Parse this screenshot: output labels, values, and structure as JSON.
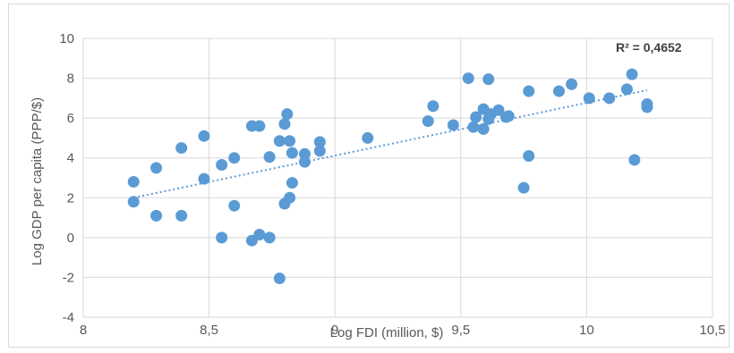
{
  "chart_data": {
    "type": "scatter",
    "xlabel": "Log FDI (million, $)",
    "ylabel": "Log GDP per capita (PPP/$)",
    "xlim": [
      8,
      10.5
    ],
    "ylim": [
      -4,
      10
    ],
    "x_ticks": [
      8,
      8.5,
      9,
      9.5,
      10,
      10.5
    ],
    "x_tick_labels": [
      "8",
      "8,5",
      "9",
      "9,5",
      "10",
      "10,5"
    ],
    "y_ticks": [
      -4,
      -2,
      0,
      2,
      4,
      6,
      8,
      10
    ],
    "y_tick_labels": [
      "-4",
      "-2",
      "0",
      "2",
      "4",
      "6",
      "8",
      "10"
    ],
    "grid": "horizontal and vertical",
    "annotation": "R² = 0,4652",
    "trendline": {
      "type": "linear",
      "style": "dotted",
      "x": [
        8.2,
        10.24
      ],
      "y": [
        2.0,
        7.4
      ]
    },
    "colors": {
      "points": "#5b9bd5",
      "trendline": "#5b9bd5",
      "grid": "#d9d9d9"
    },
    "series": [
      {
        "points": [
          [
            8.2,
            2.8
          ],
          [
            8.2,
            1.8
          ],
          [
            8.29,
            3.5
          ],
          [
            8.29,
            1.1
          ],
          [
            8.39,
            4.5
          ],
          [
            8.39,
            1.1
          ],
          [
            8.48,
            5.1
          ],
          [
            8.48,
            2.95
          ],
          [
            8.55,
            3.65
          ],
          [
            8.55,
            0.0
          ],
          [
            8.6,
            4.0
          ],
          [
            8.6,
            1.6
          ],
          [
            8.67,
            5.6
          ],
          [
            8.67,
            -0.15
          ],
          [
            8.7,
            5.6
          ],
          [
            8.7,
            0.15
          ],
          [
            8.74,
            4.05
          ],
          [
            8.74,
            0.0
          ],
          [
            8.78,
            4.85
          ],
          [
            8.78,
            -2.05
          ],
          [
            8.8,
            5.7
          ],
          [
            8.81,
            6.2
          ],
          [
            8.82,
            4.85
          ],
          [
            8.83,
            4.25
          ],
          [
            8.83,
            2.75
          ],
          [
            8.82,
            2.0
          ],
          [
            8.8,
            1.7
          ],
          [
            8.88,
            4.2
          ],
          [
            8.88,
            3.8
          ],
          [
            8.94,
            4.8
          ],
          [
            8.94,
            4.35
          ],
          [
            9.13,
            5.0
          ],
          [
            9.37,
            5.85
          ],
          [
            9.39,
            6.6
          ],
          [
            9.47,
            5.65
          ],
          [
            9.53,
            8.0
          ],
          [
            9.55,
            5.55
          ],
          [
            9.56,
            6.05
          ],
          [
            9.59,
            6.45
          ],
          [
            9.59,
            5.45
          ],
          [
            9.61,
            7.95
          ],
          [
            9.62,
            6.2
          ],
          [
            9.61,
            5.95
          ],
          [
            9.65,
            6.4
          ],
          [
            9.68,
            6.05
          ],
          [
            9.69,
            6.1
          ],
          [
            9.75,
            2.5
          ],
          [
            9.77,
            7.35
          ],
          [
            9.77,
            4.1
          ],
          [
            9.89,
            7.35
          ],
          [
            9.94,
            7.7
          ],
          [
            10.01,
            7.0
          ],
          [
            10.09,
            7.0
          ],
          [
            10.16,
            7.45
          ],
          [
            10.18,
            8.2
          ],
          [
            10.19,
            3.9
          ],
          [
            10.24,
            6.7
          ],
          [
            10.24,
            6.55
          ]
        ]
      }
    ]
  }
}
